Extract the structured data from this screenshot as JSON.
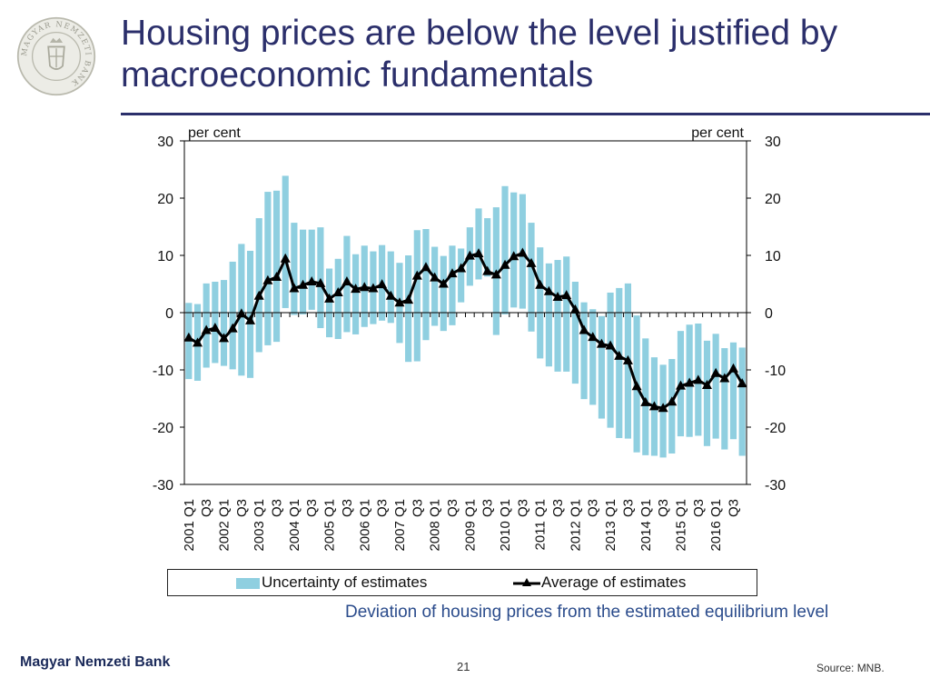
{
  "slide": {
    "title_line1": "Housing prices are below the level justified by",
    "title_line2": "macroeconomic fundamentals",
    "subtitle": "Deviation of housing prices from the estimated equilibrium level",
    "footer_bank": "Magyar Nemzeti Bank",
    "page_number": "21",
    "source": "Source: MNB.",
    "logo_text": "MAGYAR NEMZETI BANK"
  },
  "colors": {
    "title": "#2b2f6b",
    "band": "#8fcfe0",
    "line": "#000000",
    "subtitle": "#2b4c8c"
  },
  "chart_data": {
    "type": "bar",
    "title": "Deviation of housing prices from the estimated equilibrium level",
    "ylabel_left": "per cent",
    "ylabel_right": "per cent",
    "ylim": [
      -30,
      30
    ],
    "yticks": [
      30,
      20,
      10,
      0,
      -10,
      -20,
      -30
    ],
    "xtick_labels": [
      "2001 Q1",
      "Q3",
      "2002 Q1",
      "Q3",
      "2003 Q1",
      "Q3",
      "2004 Q1",
      "Q3",
      "2005 Q1",
      "Q3",
      "2006 Q1",
      "Q3",
      "2007 Q1",
      "Q3",
      "2008 Q1",
      "Q3",
      "2009 Q1",
      "Q3",
      "2010 Q1",
      "Q3",
      "2011 Q1",
      "Q3",
      "2012 Q1",
      "Q3",
      "2013 Q1",
      "Q3",
      "2014 Q1",
      "Q3",
      "2015 Q1",
      "Q3",
      "2016 Q1",
      "Q3"
    ],
    "categories": [
      "2001 Q1",
      "2001 Q2",
      "2001 Q3",
      "2001 Q4",
      "2002 Q1",
      "2002 Q2",
      "2002 Q3",
      "2002 Q4",
      "2003 Q1",
      "2003 Q2",
      "2003 Q3",
      "2003 Q4",
      "2004 Q1",
      "2004 Q2",
      "2004 Q3",
      "2004 Q4",
      "2005 Q1",
      "2005 Q2",
      "2005 Q3",
      "2005 Q4",
      "2006 Q1",
      "2006 Q2",
      "2006 Q3",
      "2006 Q4",
      "2007 Q1",
      "2007 Q2",
      "2007 Q3",
      "2007 Q4",
      "2008 Q1",
      "2008 Q2",
      "2008 Q3",
      "2008 Q4",
      "2009 Q1",
      "2009 Q2",
      "2009 Q3",
      "2009 Q4",
      "2010 Q1",
      "2010 Q2",
      "2010 Q3",
      "2010 Q4",
      "2011 Q1",
      "2011 Q2",
      "2011 Q3",
      "2011 Q4",
      "2012 Q1",
      "2012 Q2",
      "2012 Q3",
      "2012 Q4",
      "2013 Q1",
      "2013 Q2",
      "2013 Q3",
      "2013 Q4",
      "2014 Q1",
      "2014 Q2",
      "2014 Q3",
      "2014 Q4",
      "2015 Q1",
      "2015 Q2",
      "2015 Q3",
      "2015 Q4",
      "2016 Q1",
      "2016 Q2",
      "2016 Q3",
      "2016 Q4"
    ],
    "series": [
      {
        "name": "Uncertainty of estimates",
        "kind": "band",
        "upper": [
          1.7,
          1.5,
          5.1,
          5.4,
          5.7,
          8.9,
          12.0,
          10.8,
          16.5,
          21.1,
          21.3,
          23.9,
          15.7,
          14.5,
          14.5,
          14.9,
          7.7,
          9.4,
          13.4,
          10.2,
          11.7,
          10.7,
          11.8,
          10.7,
          8.7,
          10.0,
          14.4,
          14.6,
          11.5,
          9.9,
          11.7,
          11.2,
          14.9,
          18.2,
          16.5,
          18.4,
          22.1,
          21.0,
          20.7,
          15.7,
          11.4,
          8.6,
          9.2,
          9.8,
          5.4,
          1.8,
          0.6,
          -0.6,
          3.5,
          4.3,
          5.1,
          -0.5,
          -4.5,
          -7.8,
          -9.1,
          -8.1,
          -3.2,
          -2.1,
          -1.9,
          -4.9,
          -3.7,
          -6.2,
          -5.2,
          -6.1
        ],
        "lower": [
          -11.6,
          -11.9,
          -9.6,
          -8.8,
          -9.3,
          -9.9,
          -11.0,
          -11.4,
          -6.9,
          -5.7,
          -5.1,
          0.8,
          -0.4,
          -0.3,
          0.5,
          -2.7,
          -4.3,
          -4.6,
          -3.4,
          -3.8,
          -2.5,
          -2.0,
          -1.4,
          -1.8,
          -5.3,
          -8.6,
          -8.5,
          -4.8,
          -2.3,
          -3.2,
          -2.2,
          1.8,
          4.7,
          5.8,
          6.3,
          -3.9,
          -0.3,
          0.9,
          0.7,
          -3.3,
          -8.0,
          -9.4,
          -10.3,
          -10.3,
          -12.4,
          -15.1,
          -16.1,
          -18.5,
          -20.1,
          -21.9,
          -22.0,
          -24.4,
          -24.9,
          -25.0,
          -25.3,
          -24.6,
          -21.6,
          -21.7,
          -21.5,
          -23.3,
          -22.0,
          -23.9,
          -22.1,
          -25.0
        ]
      },
      {
        "name": "Average of estimates",
        "kind": "line",
        "values": [
          -4.4,
          -5.3,
          -3.1,
          -2.7,
          -4.5,
          -2.8,
          -0.2,
          -1.4,
          2.9,
          5.6,
          6.2,
          9.4,
          4.2,
          4.8,
          5.4,
          5.1,
          2.4,
          3.5,
          5.4,
          4.1,
          4.4,
          4.2,
          4.9,
          2.9,
          1.7,
          2.2,
          6.4,
          7.9,
          6.1,
          5.0,
          6.8,
          7.7,
          9.9,
          10.3,
          7.2,
          6.6,
          8.3,
          9.8,
          10.4,
          8.6,
          4.8,
          3.7,
          2.7,
          3.0,
          0.5,
          -3.1,
          -4.3,
          -5.5,
          -5.8,
          -7.6,
          -8.4,
          -12.9,
          -15.7,
          -16.4,
          -16.7,
          -15.6,
          -12.8,
          -12.3,
          -11.8,
          -12.7,
          -10.6,
          -11.5,
          -9.8,
          -12.4
        ]
      }
    ],
    "legend": [
      "Uncertainty of estimates",
      "Average of estimates"
    ],
    "legend_position": "bottom"
  }
}
